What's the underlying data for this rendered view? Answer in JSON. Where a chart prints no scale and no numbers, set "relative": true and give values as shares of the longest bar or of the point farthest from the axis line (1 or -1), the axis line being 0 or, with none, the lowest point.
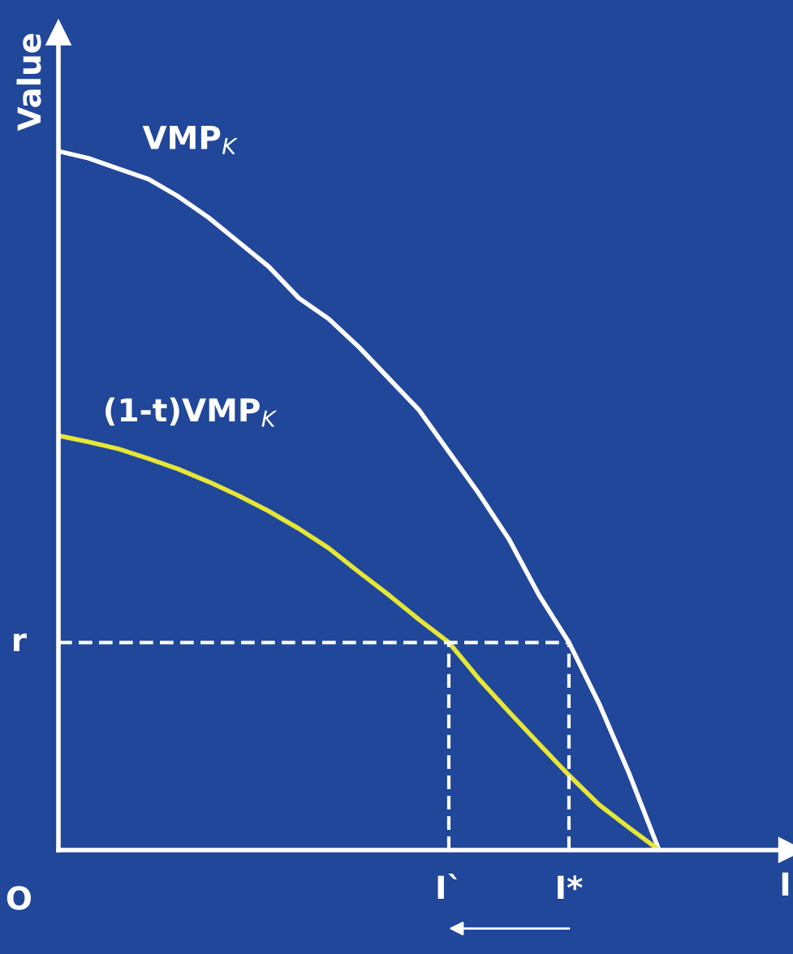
{
  "chart_data": {
    "type": "line",
    "relative": true,
    "xlabel": "I",
    "ylabel": "Value",
    "line_style": "solid",
    "marker": "none",
    "legend": false,
    "categories": [
      null,
      null,
      null,
      null,
      null,
      null,
      null,
      null,
      null,
      null,
      null,
      null,
      null,
      "I`",
      null,
      null,
      null,
      "I*",
      null,
      null,
      null
    ],
    "series": [
      {
        "name": "VMP$_{K}$",
        "color": "#ffffff",
        "values": [
          1,
          0.99,
          0.975,
          0.96,
          0.935,
          0.905,
          0.87,
          0.835,
          0.79,
          0.76,
          0.72,
          0.675,
          0.63,
          0.57,
          0.51,
          0.445,
          0.365,
          0.297,
          0.21,
          0.11,
          0
        ]
      },
      {
        "name": "(1-t)VMP$_{K}$",
        "color": "#e6e635",
        "values": [
          0.593,
          0.584,
          0.574,
          0.56,
          0.545,
          0.527,
          0.507,
          0.485,
          0.46,
          0.432,
          0.398,
          0.365,
          0.33,
          0.297,
          0.245,
          0.198,
          0.152,
          0.107,
          0.065,
          0.032,
          0
        ]
      }
    ],
    "ref_lines": [
      {
        "axis": "y",
        "value": 0.297,
        "label": "r",
        "color": "#ffffff",
        "line_style": "dashed"
      },
      {
        "axis": "x",
        "value": "I`",
        "color": "#ffffff",
        "line_style": "dashed"
      },
      {
        "axis": "x",
        "value": "I*",
        "color": "#ffffff",
        "line_style": "dashed"
      }
    ],
    "annotations": [
      "O"
    ]
  }
}
